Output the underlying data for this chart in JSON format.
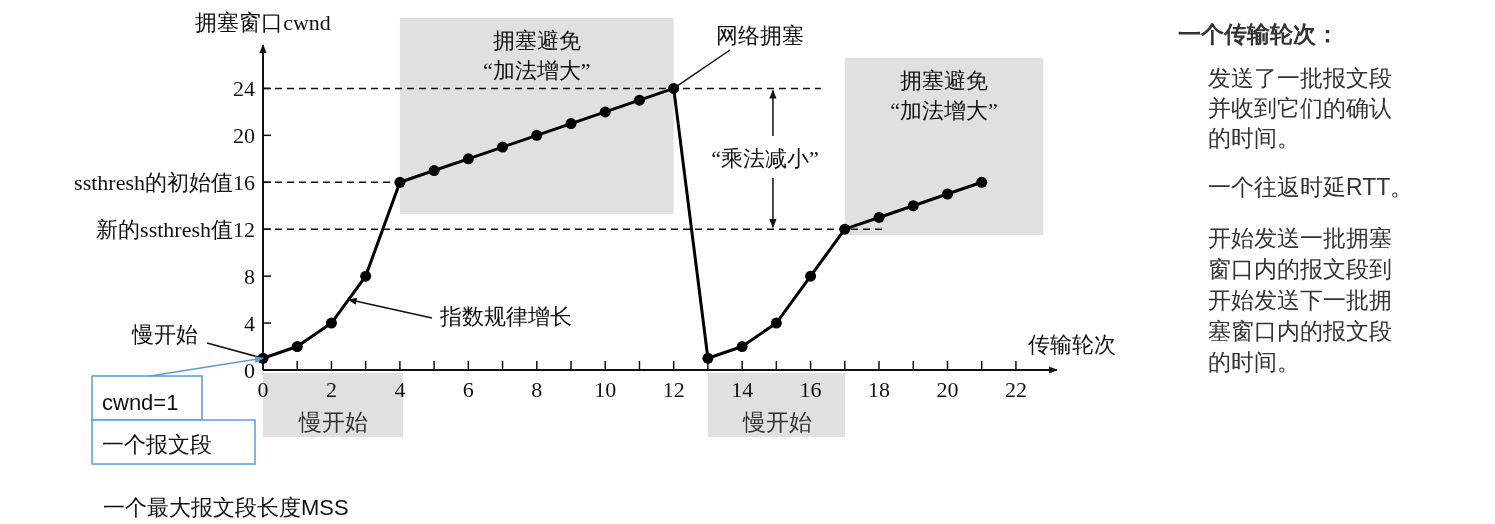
{
  "chart_data": {
    "type": "line",
    "ylabel": "拥塞窗口cwnd",
    "xlabel": "传输轮次",
    "series": [
      {
        "color": "#000000",
        "x": [
          0,
          1,
          2,
          3,
          4,
          5,
          6,
          7,
          8,
          9,
          10,
          11,
          12,
          13,
          14,
          15,
          16,
          17,
          18,
          19,
          20,
          21
        ],
        "values": [
          1,
          2,
          4,
          8,
          16,
          17,
          18,
          19,
          20,
          21,
          22,
          23,
          24,
          1,
          2,
          4,
          8,
          12,
          13,
          14,
          15,
          16
        ]
      }
    ],
    "marker": "circle",
    "line_style": "solid",
    "xlim": [
      0,
      23.2
    ],
    "ylim": [
      0,
      27.7
    ],
    "xticks": [
      0,
      {
        "value": 1,
        "label": null
      },
      2,
      {
        "value": 3,
        "label": null
      },
      4,
      {
        "value": 5,
        "label": null
      },
      6,
      {
        "value": 7,
        "label": null
      },
      8,
      {
        "value": 9,
        "label": null
      },
      10,
      {
        "value": 11,
        "label": null
      },
      12,
      {
        "value": 13,
        "label": null
      },
      14,
      {
        "value": 15,
        "label": null
      },
      16,
      {
        "value": 17,
        "label": null
      },
      18,
      {
        "value": 19,
        "label": null
      },
      20,
      {
        "value": 21,
        "label": null
      },
      22
    ],
    "yticks": [
      0,
      4,
      8,
      {
        "value": 12,
        "label": "新的ssthresh值12"
      },
      {
        "value": 16,
        "label": "ssthresh的初始值16"
      },
      20,
      24
    ],
    "ref_lines": [
      {
        "axis": "y",
        "value": 24,
        "line_style": "dashed"
      },
      {
        "axis": "y",
        "value": 16,
        "line_style": "dashed"
      },
      {
        "axis": "y",
        "value": 12,
        "line_style": "dashed"
      }
    ],
    "bands": [
      {
        "axis": "x",
        "from": 4,
        "to": 12,
        "label": "拥塞避免\n“加法增大”",
        "color": "#e0e0e0"
      },
      {
        "axis": "x",
        "from": 17,
        "to": 22.8,
        "label": "拥塞避免\n“加法增大”",
        "color": "#e0e0e0"
      }
    ],
    "annotations": [
      {
        "text": "网络拥塞",
        "x": 12,
        "y": 24
      },
      {
        "text": "指数规律增长",
        "x": 2.5,
        "y": 6
      },
      {
        "text": "慢开始",
        "x": 0,
        "y": 1
      },
      {
        "text": "cwnd=1",
        "x": 0,
        "y": 1
      },
      "一个报文段",
      {
        "text": "“乘法减小”",
        "x": 14.9,
        "y": 24
      },
      "一个最大报文段长度MSS",
      "一个传输轮次：",
      "发送了一批报文段并收到它们的确认的时间。",
      "一个往返时延RTT。",
      "开始发送一批拥塞窗口内的报文段到开始发送下一批拥塞窗口内的报文段的时间。",
      "慢开始",
      "慢开始"
    ]
  }
}
